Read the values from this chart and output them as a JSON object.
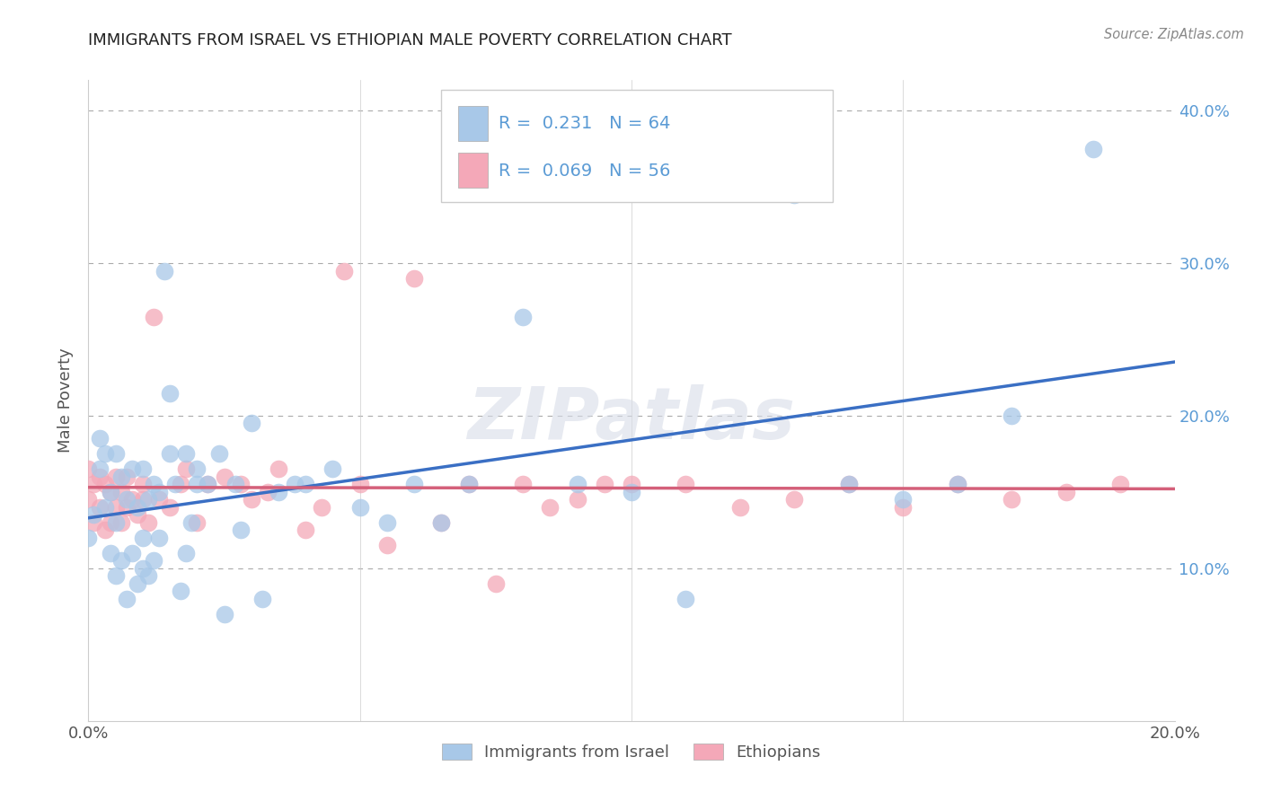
{
  "title": "IMMIGRANTS FROM ISRAEL VS ETHIOPIAN MALE POVERTY CORRELATION CHART",
  "source": "Source: ZipAtlas.com",
  "ylabel": "Male Poverty",
  "watermark": "ZIPatlas",
  "legend1_label": "Immigrants from Israel",
  "legend2_label": "Ethiopians",
  "R1": 0.231,
  "N1": 64,
  "R2": 0.069,
  "N2": 56,
  "color_blue": "#a8c8e8",
  "color_pink": "#f4a8b8",
  "line_color_blue": "#3a6fc4",
  "line_color_pink": "#d4607a",
  "xlim": [
    0.0,
    0.2
  ],
  "ylim": [
    0.0,
    0.42
  ],
  "yticks": [
    0.1,
    0.2,
    0.3,
    0.4
  ],
  "ytick_labels": [
    "10.0%",
    "20.0%",
    "30.0%",
    "40.0%"
  ],
  "ytick_color": "#5b9bd5",
  "blue_scatter_x": [
    0.0,
    0.001,
    0.002,
    0.002,
    0.003,
    0.003,
    0.004,
    0.004,
    0.005,
    0.005,
    0.005,
    0.006,
    0.006,
    0.007,
    0.007,
    0.008,
    0.008,
    0.009,
    0.009,
    0.01,
    0.01,
    0.01,
    0.011,
    0.011,
    0.012,
    0.012,
    0.013,
    0.013,
    0.014,
    0.015,
    0.015,
    0.016,
    0.017,
    0.018,
    0.018,
    0.019,
    0.02,
    0.02,
    0.022,
    0.024,
    0.025,
    0.027,
    0.028,
    0.03,
    0.032,
    0.035,
    0.038,
    0.04,
    0.045,
    0.05,
    0.055,
    0.06,
    0.065,
    0.07,
    0.08,
    0.09,
    0.1,
    0.11,
    0.13,
    0.14,
    0.15,
    0.16,
    0.17,
    0.185
  ],
  "blue_scatter_y": [
    0.12,
    0.135,
    0.165,
    0.185,
    0.14,
    0.175,
    0.11,
    0.15,
    0.095,
    0.13,
    0.175,
    0.105,
    0.16,
    0.08,
    0.145,
    0.11,
    0.165,
    0.09,
    0.14,
    0.1,
    0.12,
    0.165,
    0.095,
    0.145,
    0.105,
    0.155,
    0.12,
    0.15,
    0.295,
    0.175,
    0.215,
    0.155,
    0.085,
    0.175,
    0.11,
    0.13,
    0.165,
    0.155,
    0.155,
    0.175,
    0.07,
    0.155,
    0.125,
    0.195,
    0.08,
    0.15,
    0.155,
    0.155,
    0.165,
    0.14,
    0.13,
    0.155,
    0.13,
    0.155,
    0.265,
    0.155,
    0.15,
    0.08,
    0.345,
    0.155,
    0.145,
    0.155,
    0.2,
    0.375
  ],
  "pink_scatter_x": [
    0.0,
    0.0,
    0.001,
    0.001,
    0.002,
    0.002,
    0.003,
    0.003,
    0.004,
    0.004,
    0.005,
    0.005,
    0.006,
    0.006,
    0.007,
    0.007,
    0.008,
    0.009,
    0.01,
    0.01,
    0.011,
    0.012,
    0.013,
    0.015,
    0.017,
    0.018,
    0.02,
    0.022,
    0.025,
    0.028,
    0.03,
    0.033,
    0.035,
    0.04,
    0.043,
    0.047,
    0.05,
    0.055,
    0.06,
    0.065,
    0.07,
    0.075,
    0.08,
    0.085,
    0.09,
    0.095,
    0.1,
    0.11,
    0.12,
    0.13,
    0.14,
    0.15,
    0.16,
    0.17,
    0.18,
    0.19
  ],
  "pink_scatter_y": [
    0.145,
    0.165,
    0.13,
    0.155,
    0.14,
    0.16,
    0.125,
    0.155,
    0.13,
    0.15,
    0.14,
    0.16,
    0.13,
    0.15,
    0.14,
    0.16,
    0.145,
    0.135,
    0.145,
    0.155,
    0.13,
    0.265,
    0.145,
    0.14,
    0.155,
    0.165,
    0.13,
    0.155,
    0.16,
    0.155,
    0.145,
    0.15,
    0.165,
    0.125,
    0.14,
    0.295,
    0.155,
    0.115,
    0.29,
    0.13,
    0.155,
    0.09,
    0.155,
    0.14,
    0.145,
    0.155,
    0.155,
    0.155,
    0.14,
    0.145,
    0.155,
    0.14,
    0.155,
    0.145,
    0.15,
    0.155
  ]
}
